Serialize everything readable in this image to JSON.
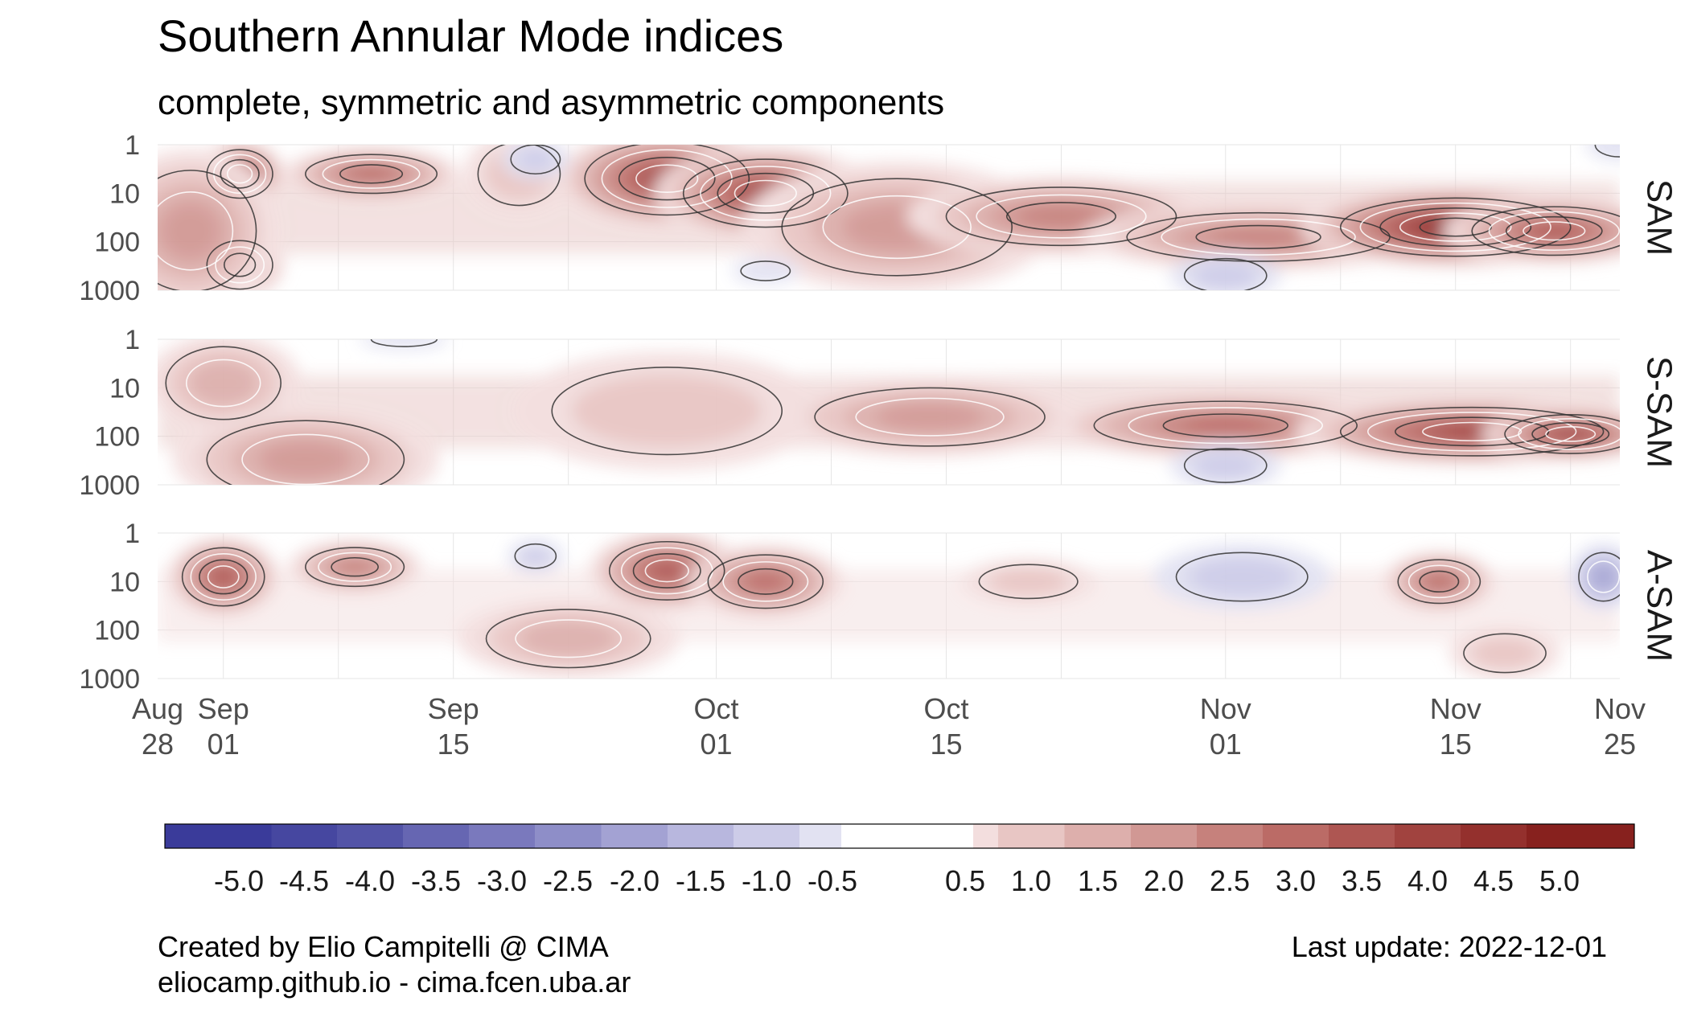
{
  "title": "Southern Annular Mode indices",
  "subtitle": "complete, symmetric and asymmetric components",
  "caption_left": [
    "Created by Elio Campitelli @ CIMA",
    "eliocamp.github.io - cima.fcen.uba.ar"
  ],
  "caption_right": "Last update: 2022-12-01",
  "chart_data": {
    "type": "heatmap",
    "x_axis": {
      "start": "2022-08-28",
      "end": "2022-11-25",
      "ticks": [
        {
          "date": "2022-08-28",
          "line1": "Aug",
          "line2": "28"
        },
        {
          "date": "2022-09-01",
          "line1": "Sep",
          "line2": "01"
        },
        {
          "date": "2022-09-15",
          "line1": "Sep",
          "line2": "15"
        },
        {
          "date": "2022-10-01",
          "line1": "Oct",
          "line2": "01"
        },
        {
          "date": "2022-10-15",
          "line1": "Oct",
          "line2": "15"
        },
        {
          "date": "2022-11-01",
          "line1": "Nov",
          "line2": "01"
        },
        {
          "date": "2022-11-15",
          "line1": "Nov",
          "line2": "15"
        },
        {
          "date": "2022-11-25",
          "line1": "Nov",
          "line2": "25"
        }
      ]
    },
    "y_axis": {
      "scale": "log-reversed",
      "range": [
        1,
        1000
      ],
      "ticks": [
        "1",
        "10",
        "100",
        "1000"
      ]
    },
    "panels": [
      {
        "label": "SAM",
        "features": [
          {
            "date": "2022-09-02",
            "level": 4,
            "value": 3.8,
            "width_days": 4,
            "height_decades": 1.0
          },
          {
            "date": "2022-09-02",
            "level": 300,
            "value": 3.0,
            "width_days": 4,
            "height_decades": 1.0
          },
          {
            "date": "2022-09-10",
            "level": 4,
            "value": 3.0,
            "width_days": 8,
            "height_decades": 0.8
          },
          {
            "date": "2022-08-30",
            "level": 60,
            "value": 2.0,
            "width_days": 8,
            "height_decades": 2.5
          },
          {
            "date": "2022-09-19",
            "level": 4,
            "value": 1.0,
            "width_days": 5,
            "height_decades": 1.3
          },
          {
            "date": "2022-09-28",
            "level": 5,
            "value": 3.8,
            "width_days": 10,
            "height_decades": 1.5
          },
          {
            "date": "2022-10-04",
            "level": 10,
            "value": 3.8,
            "width_days": 10,
            "height_decades": 1.4
          },
          {
            "date": "2022-10-12",
            "level": 50,
            "value": 2.2,
            "width_days": 14,
            "height_decades": 2.0
          },
          {
            "date": "2022-10-22",
            "level": 30,
            "value": 2.5,
            "width_days": 14,
            "height_decades": 1.2
          },
          {
            "date": "2022-11-03",
            "level": 80,
            "value": 2.5,
            "width_days": 16,
            "height_decades": 1.0
          },
          {
            "date": "2022-11-15",
            "level": 50,
            "value": 4.8,
            "width_days": 14,
            "height_decades": 1.2
          },
          {
            "date": "2022-11-21",
            "level": 60,
            "value": 3.5,
            "width_days": 10,
            "height_decades": 1.0
          },
          {
            "date": "2022-11-01",
            "level": 500,
            "value": -1.0,
            "width_days": 5,
            "height_decades": 0.7
          },
          {
            "date": "2022-10-04",
            "level": 400,
            "value": -0.7,
            "width_days": 3,
            "height_decades": 0.4
          },
          {
            "date": "2022-09-20",
            "level": 2,
            "value": -0.8,
            "width_days": 3,
            "height_decades": 0.6
          },
          {
            "date": "2022-11-25",
            "level": 1,
            "value": -0.7,
            "width_days": 3,
            "height_decades": 0.5
          }
        ]
      },
      {
        "label": "S-SAM",
        "features": [
          {
            "date": "2022-09-01",
            "level": 8,
            "value": 1.5,
            "width_days": 7,
            "height_decades": 1.5
          },
          {
            "date": "2022-09-06",
            "level": 300,
            "value": 2.0,
            "width_days": 12,
            "height_decades": 1.6
          },
          {
            "date": "2022-09-28",
            "level": 30,
            "value": 1.0,
            "width_days": 14,
            "height_decades": 1.8
          },
          {
            "date": "2022-10-14",
            "level": 40,
            "value": 2.0,
            "width_days": 14,
            "height_decades": 1.2
          },
          {
            "date": "2022-11-01",
            "level": 60,
            "value": 2.8,
            "width_days": 16,
            "height_decades": 1.0
          },
          {
            "date": "2022-11-16",
            "level": 80,
            "value": 4.0,
            "width_days": 16,
            "height_decades": 1.0
          },
          {
            "date": "2022-11-22",
            "level": 90,
            "value": 4.2,
            "width_days": 8,
            "height_decades": 0.8
          },
          {
            "date": "2022-11-01",
            "level": 400,
            "value": -1.0,
            "width_days": 5,
            "height_decades": 0.7
          },
          {
            "date": "2022-09-12",
            "level": 1,
            "value": -0.7,
            "width_days": 4,
            "height_decades": 0.3
          }
        ]
      },
      {
        "label": "A-SAM",
        "features": [
          {
            "date": "2022-09-01",
            "level": 8,
            "value": 3.5,
            "width_days": 5,
            "height_decades": 1.2
          },
          {
            "date": "2022-09-09",
            "level": 5,
            "value": 2.5,
            "width_days": 6,
            "height_decades": 0.8
          },
          {
            "date": "2022-09-20",
            "level": 3,
            "value": -1.2,
            "width_days": 2.5,
            "height_decades": 0.5
          },
          {
            "date": "2022-09-28",
            "level": 6,
            "value": 3.5,
            "width_days": 7,
            "height_decades": 1.2
          },
          {
            "date": "2022-10-04",
            "level": 10,
            "value": 3.0,
            "width_days": 7,
            "height_decades": 1.1
          },
          {
            "date": "2022-09-22",
            "level": 150,
            "value": 1.5,
            "width_days": 10,
            "height_decades": 1.2
          },
          {
            "date": "2022-10-20",
            "level": 10,
            "value": 1.2,
            "width_days": 6,
            "height_decades": 0.7
          },
          {
            "date": "2022-11-02",
            "level": 8,
            "value": -0.8,
            "width_days": 8,
            "height_decades": 1.0
          },
          {
            "date": "2022-11-14",
            "level": 10,
            "value": 3.0,
            "width_days": 5,
            "height_decades": 0.9
          },
          {
            "date": "2022-11-24",
            "level": 8,
            "value": -2.0,
            "width_days": 3,
            "height_decades": 1.0
          },
          {
            "date": "2022-11-18",
            "level": 300,
            "value": 1.2,
            "width_days": 5,
            "height_decades": 0.8
          }
        ]
      }
    ],
    "colorbar": {
      "labels": [
        "-5.0",
        "-4.5",
        "-4.0",
        "-3.5",
        "-3.0",
        "-2.5",
        "-2.0",
        "-1.5",
        "-1.0",
        "-0.5",
        "0.5",
        "1.0",
        "1.5",
        "2.0",
        "2.5",
        "3.0",
        "3.5",
        "4.0",
        "4.5",
        "5.0"
      ],
      "negative_colors": [
        "#3a3b9a",
        "#4647a0",
        "#5354a7",
        "#6666b2",
        "#7a79bd",
        "#8e8ec8",
        "#a3a2d3",
        "#b8b7de",
        "#cdcce8",
        "#e2e2f2"
      ],
      "zero_color": "#ffffff",
      "positive_colors": [
        "#f3dede",
        "#e8c6c4",
        "#ddafac",
        "#d19894",
        "#c6817c",
        "#bb6b66",
        "#ae5652",
        "#a1433f",
        "#94302d",
        "#87211e"
      ]
    }
  }
}
